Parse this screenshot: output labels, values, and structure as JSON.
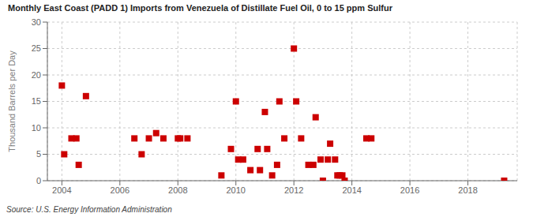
{
  "chart_data": {
    "type": "scatter",
    "title": "Monthly East Coast (PADD 1) Imports from Venezuela of Distillate Fuel Oil, 0 to 15 ppm Sulfur",
    "ylabel": "Thousand Barrels per Day",
    "annotations": [
      "Source: U.S. Energy Information Administration"
    ],
    "x": [
      2004.0,
      2004.08,
      2004.33,
      2004.5,
      2004.58,
      2004.83,
      2006.5,
      2006.75,
      2007.0,
      2007.25,
      2007.5,
      2008.0,
      2008.08,
      2008.33,
      2009.5,
      2009.83,
      2010.0,
      2010.08,
      2010.25,
      2010.5,
      2010.75,
      2010.83,
      2011.0,
      2011.08,
      2011.25,
      2011.42,
      2011.5,
      2011.67,
      2012.0,
      2012.08,
      2012.25,
      2012.5,
      2012.67,
      2012.75,
      2012.92,
      2013.0,
      2013.17,
      2013.25,
      2013.42,
      2013.5,
      2013.58,
      2013.67,
      2013.75,
      2014.5,
      2014.67,
      2019.25
    ],
    "values": [
      18,
      5,
      8,
      8,
      3,
      16,
      8,
      5,
      8,
      9,
      8,
      8,
      8,
      8,
      1,
      6,
      15,
      4,
      4,
      2,
      6,
      2,
      13,
      6,
      1,
      3,
      15,
      8,
      25,
      15,
      8,
      3,
      3,
      12,
      4,
      0,
      4,
      7,
      4,
      1,
      1,
      1,
      0,
      8,
      8,
      0
    ],
    "color": "#cc0000",
    "marker": "square",
    "xlim": [
      2003.5,
      2019.7
    ],
    "ylim": [
      0,
      30
    ],
    "xticks": [
      2004,
      2006,
      2008,
      2010,
      2012,
      2014,
      2016,
      2018
    ],
    "yticks": [
      0,
      5,
      10,
      15,
      20,
      25,
      30
    ],
    "grid": true
  }
}
